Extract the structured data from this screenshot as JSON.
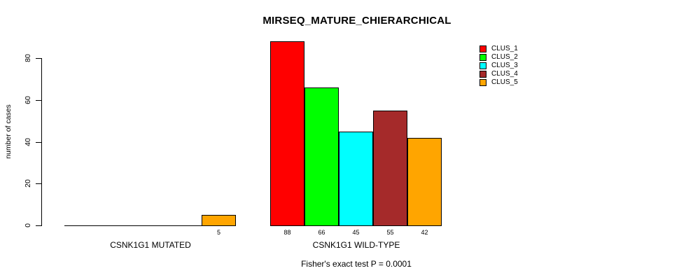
{
  "chart_data": {
    "type": "bar",
    "title": "MIRSEQ_MATURE_CHIERARCHICAL",
    "xlabel": "",
    "ylabel": "number of cases",
    "ylim": [
      0,
      80
    ],
    "yticks": [
      0,
      20,
      40,
      60,
      80
    ],
    "grid": false,
    "legend_position": "right-outside",
    "categories": [
      "CSNK1G1 MUTATED",
      "CSNK1G1 WILD-TYPE"
    ],
    "series": [
      {
        "name": "CLUS_1",
        "color": "#FF0000",
        "values": [
          0,
          88
        ]
      },
      {
        "name": "CLUS_2",
        "color": "#00FF00",
        "values": [
          0,
          66
        ]
      },
      {
        "name": "CLUS_3",
        "color": "#00FFFF",
        "values": [
          0,
          45
        ]
      },
      {
        "name": "CLUS_4",
        "color": "#A52A2A",
        "values": [
          0,
          55
        ]
      },
      {
        "name": "CLUS_5",
        "color": "#FFA500",
        "values": [
          5,
          42
        ]
      }
    ],
    "bar_value_labels_shown": [
      [
        null,
        null,
        null,
        null,
        "5"
      ],
      [
        "88",
        "66",
        "45",
        "55",
        "42"
      ]
    ],
    "footnote": "Fisher's exact test P = 0.0001"
  }
}
